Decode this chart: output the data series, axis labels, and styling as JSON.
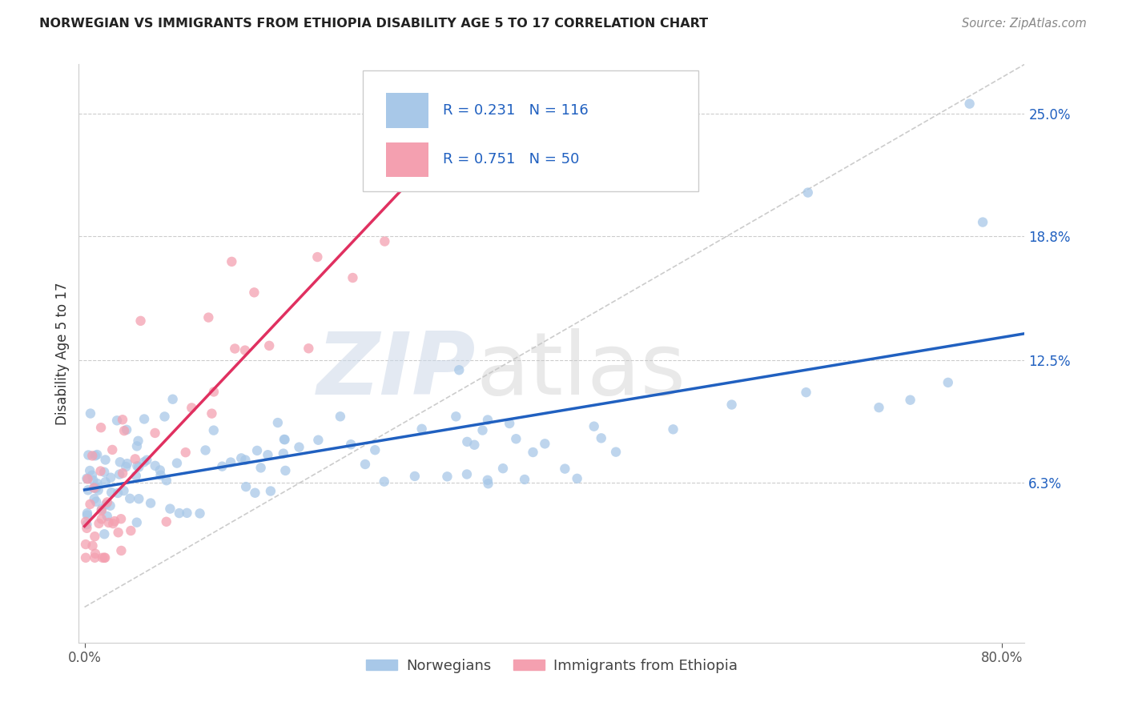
{
  "title": "NORWEGIAN VS IMMIGRANTS FROM ETHIOPIA DISABILITY AGE 5 TO 17 CORRELATION CHART",
  "source": "Source: ZipAtlas.com",
  "ylabel": "Disability Age 5 to 17",
  "y_tick_labels": [
    "6.3%",
    "12.5%",
    "18.8%",
    "25.0%"
  ],
  "y_ticks": [
    0.063,
    0.125,
    0.188,
    0.25
  ],
  "xlim": [
    -0.005,
    0.82
  ],
  "ylim": [
    -0.018,
    0.275
  ],
  "norwegian_color": "#a8c8e8",
  "ethiopia_color": "#f4a0b0",
  "trend_norwegian_color": "#2060c0",
  "trend_ethiopia_color": "#e03060",
  "diagonal_color": "#cccccc",
  "background_color": "#ffffff",
  "grid_color": "#cccccc",
  "legend_bottom_1": "Norwegians",
  "legend_bottom_2": "Immigrants from Ethiopia",
  "watermark_zip": "ZIP",
  "watermark_atlas": "atlas"
}
